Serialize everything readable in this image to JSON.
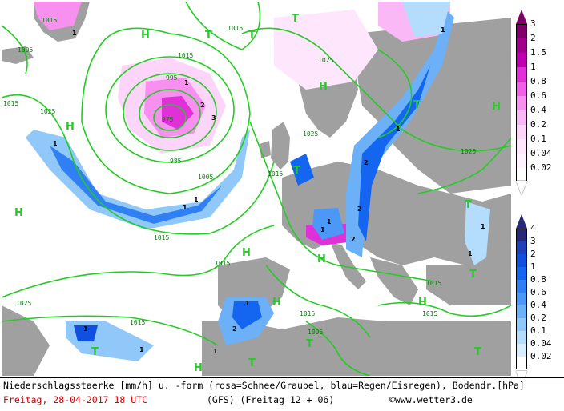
{
  "caption": {
    "line1": "Niederschlagsstaerke [mm/h] u. -form (rosa=Schnee/Graupel, blau=Regen/Eisregen), Bodendr.[hPa]",
    "date": "Freitag, 28-04-2017  18 UTC",
    "model": "(GFS)  (Freitag 12 + 06)",
    "copyright": "©www.wetter3.de"
  },
  "legend_snow": {
    "labels": [
      "3",
      "2",
      "1.5",
      "1",
      "0.8",
      "0.6",
      "0.4",
      "0.2",
      "0.1",
      "0.04",
      "0.02"
    ],
    "colors": [
      "#80006a",
      "#a0008a",
      "#c000b0",
      "#e030d8",
      "#f060e8",
      "#f890f0",
      "#fbb8f6",
      "#fdd4fa",
      "#fee6fc",
      "#fff2fe",
      "#ffffff"
    ]
  },
  "legend_rain": {
    "labels": [
      "4",
      "3",
      "2",
      "1",
      "0.8",
      "0.6",
      "0.4",
      "0.2",
      "0.1",
      "0.04",
      "0.02"
    ],
    "colors": [
      "#282878",
      "#2040b8",
      "#1050e0",
      "#1466f0",
      "#3080f4",
      "#4c98f6",
      "#6cb0f8",
      "#90c8fa",
      "#b4dcfc",
      "#d8eefe",
      "#ffffff"
    ]
  },
  "map": {
    "land_color": "#a0a0a0",
    "isobar_color": "#22cc22",
    "pressure_labels": [
      {
        "text": "1015"
      },
      {
        "text": "1005"
      },
      {
        "text": "1015"
      },
      {
        "text": "1025"
      },
      {
        "text": "995"
      },
      {
        "text": "975"
      },
      {
        "text": "985"
      },
      {
        "text": "1005"
      },
      {
        "text": "1015"
      },
      {
        "text": "1025"
      },
      {
        "text": "1015"
      },
      {
        "text": "1015"
      },
      {
        "text": "1025"
      },
      {
        "text": "1015"
      },
      {
        "text": "1025"
      },
      {
        "text": "1015"
      },
      {
        "text": "1005"
      },
      {
        "text": "1015"
      },
      {
        "text": "1015"
      },
      {
        "text": "1015"
      },
      {
        "text": "1025"
      },
      {
        "text": "1015"
      }
    ],
    "high_marker": "H",
    "low_marker": "T",
    "cell_values": [
      "1",
      "2",
      "3",
      "1",
      "1",
      "2",
      "1",
      "1",
      "1",
      "1",
      "2",
      "1",
      "1",
      "2",
      "1",
      "1",
      "1",
      "2",
      "1",
      "1",
      "1"
    ]
  }
}
